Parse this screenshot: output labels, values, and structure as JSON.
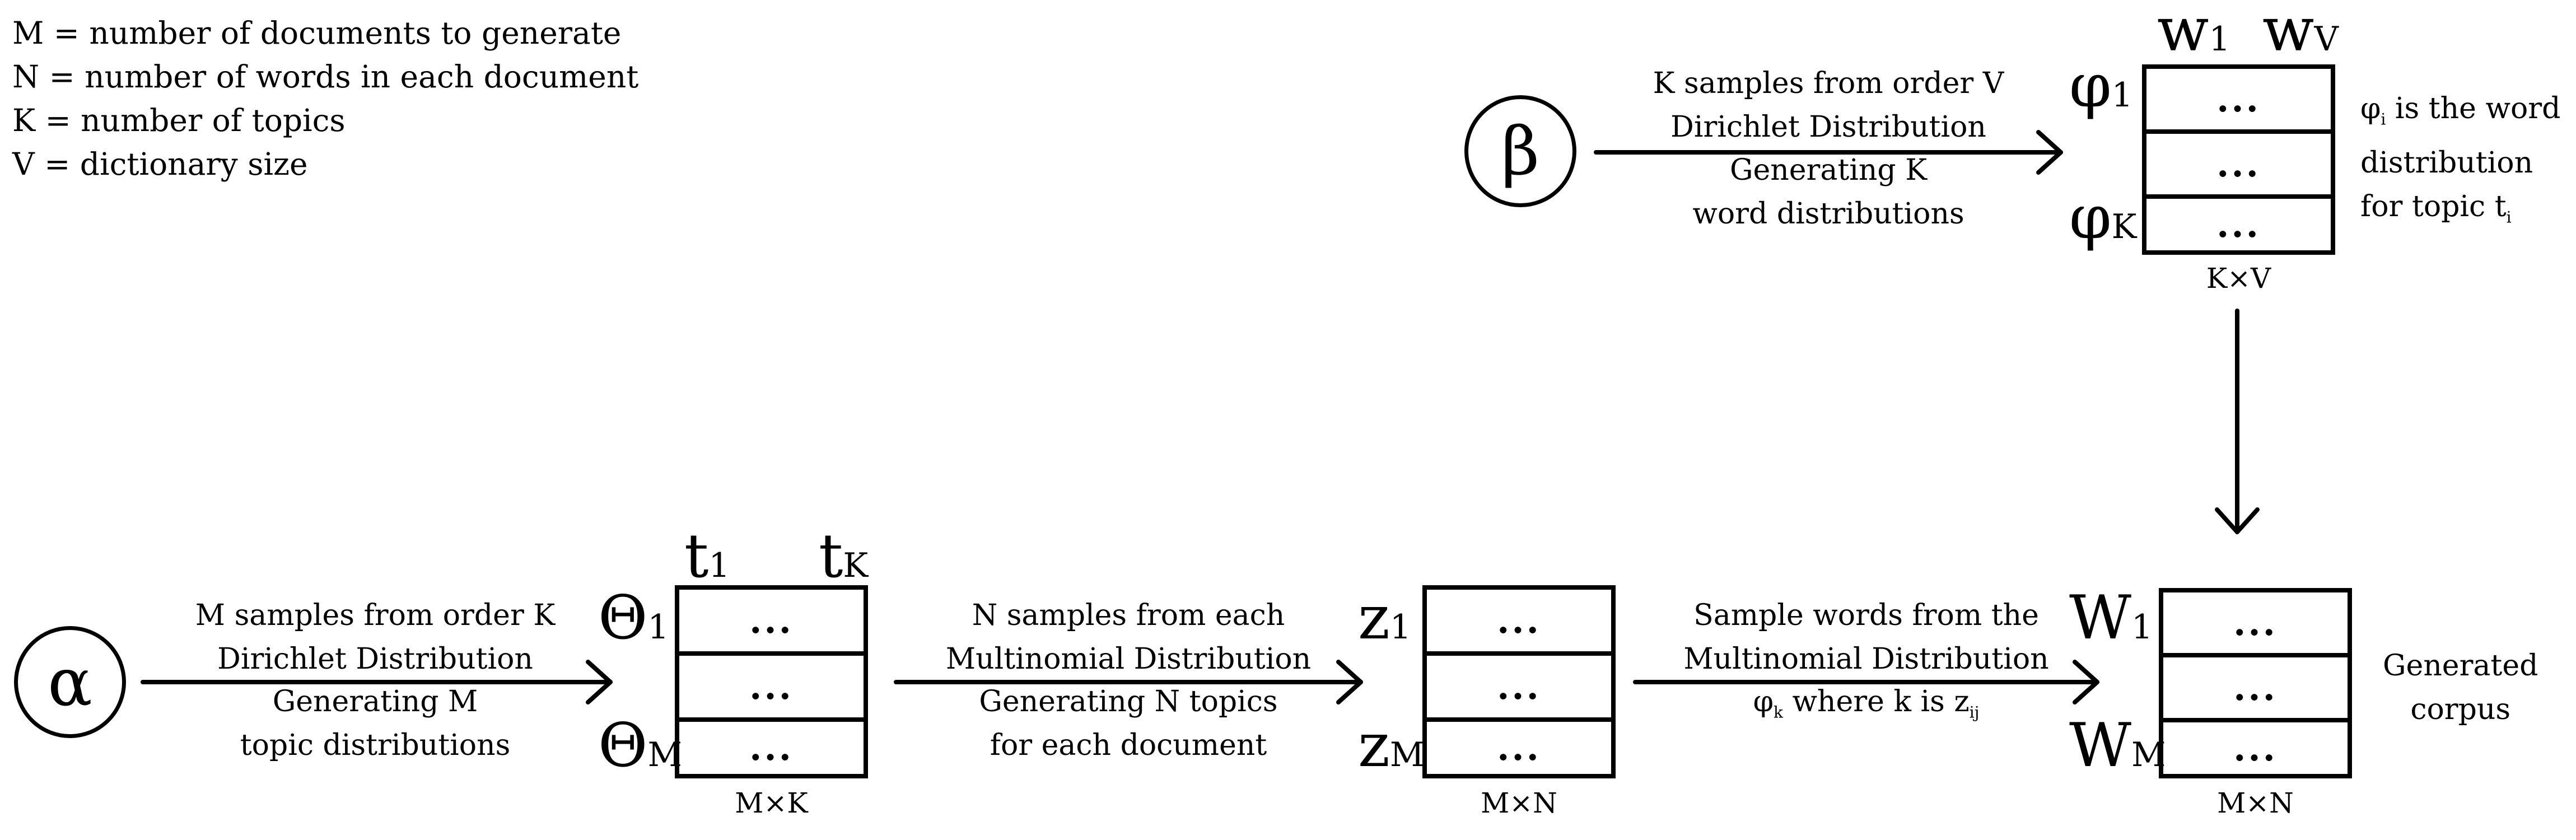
{
  "legend": [
    "M = number of documents to generate",
    "N = number of words in each document",
    "K = number of topics",
    "V = dictionary size"
  ],
  "beta": {
    "symbol": "β",
    "caption_top": [
      "K samples from order V",
      "Dirichlet Distribution"
    ],
    "caption_bottom": [
      "Generating K",
      "word distributions"
    ]
  },
  "alpha": {
    "symbol": "α",
    "caption_top": [
      "M samples from order K",
      "Dirichlet Distribution"
    ],
    "caption_bottom": [
      "Generating M",
      "topic distributions"
    ]
  },
  "arrow_topics": {
    "caption_top": [
      "N samples from each",
      "Multinomial Distribution"
    ],
    "caption_bottom": [
      "Generating N topics",
      "for each document"
    ]
  },
  "arrow_words": {
    "caption_top": [
      "Sample words from the",
      "Multinomial Distribution"
    ],
    "caption_bottom": {
      "phi": "φ",
      "phi_sub": "k",
      "mid": " where k is z",
      "z_sub": "ij"
    }
  },
  "phi_matrix": {
    "col_first": "w",
    "col_first_sub": "1",
    "col_last": "w",
    "col_last_sub": "V",
    "row_first": "φ",
    "row_first_sub": "1",
    "row_last": "φ",
    "row_last_sub": "K",
    "cells": [
      "...",
      "...",
      "..."
    ],
    "dims": "K×V",
    "note": {
      "phi": "φ",
      "phi_sub": "i",
      "line1_rest": " is the word",
      "line2": "distribution",
      "line3_pre": "for topic t",
      "t_sub": "i"
    }
  },
  "theta_matrix": {
    "col_first": "t",
    "col_first_sub": "1",
    "col_last": "t",
    "col_last_sub": "K",
    "row_first": "Θ",
    "row_first_sub": "1",
    "row_last": "Θ",
    "row_last_sub": "M",
    "cells": [
      "...",
      "...",
      "..."
    ],
    "dims": "M×K"
  },
  "z_matrix": {
    "row_first": "z",
    "row_first_sub": "1",
    "row_last": "z",
    "row_last_sub": "M",
    "cells": [
      "...",
      "...",
      "..."
    ],
    "dims": "M×N"
  },
  "w_matrix": {
    "row_first": "W",
    "row_first_sub": "1",
    "row_last": "W",
    "row_last_sub": "M",
    "cells": [
      "...",
      "...",
      "..."
    ],
    "dims": "M×N",
    "note": [
      "Generated",
      "corpus"
    ]
  }
}
